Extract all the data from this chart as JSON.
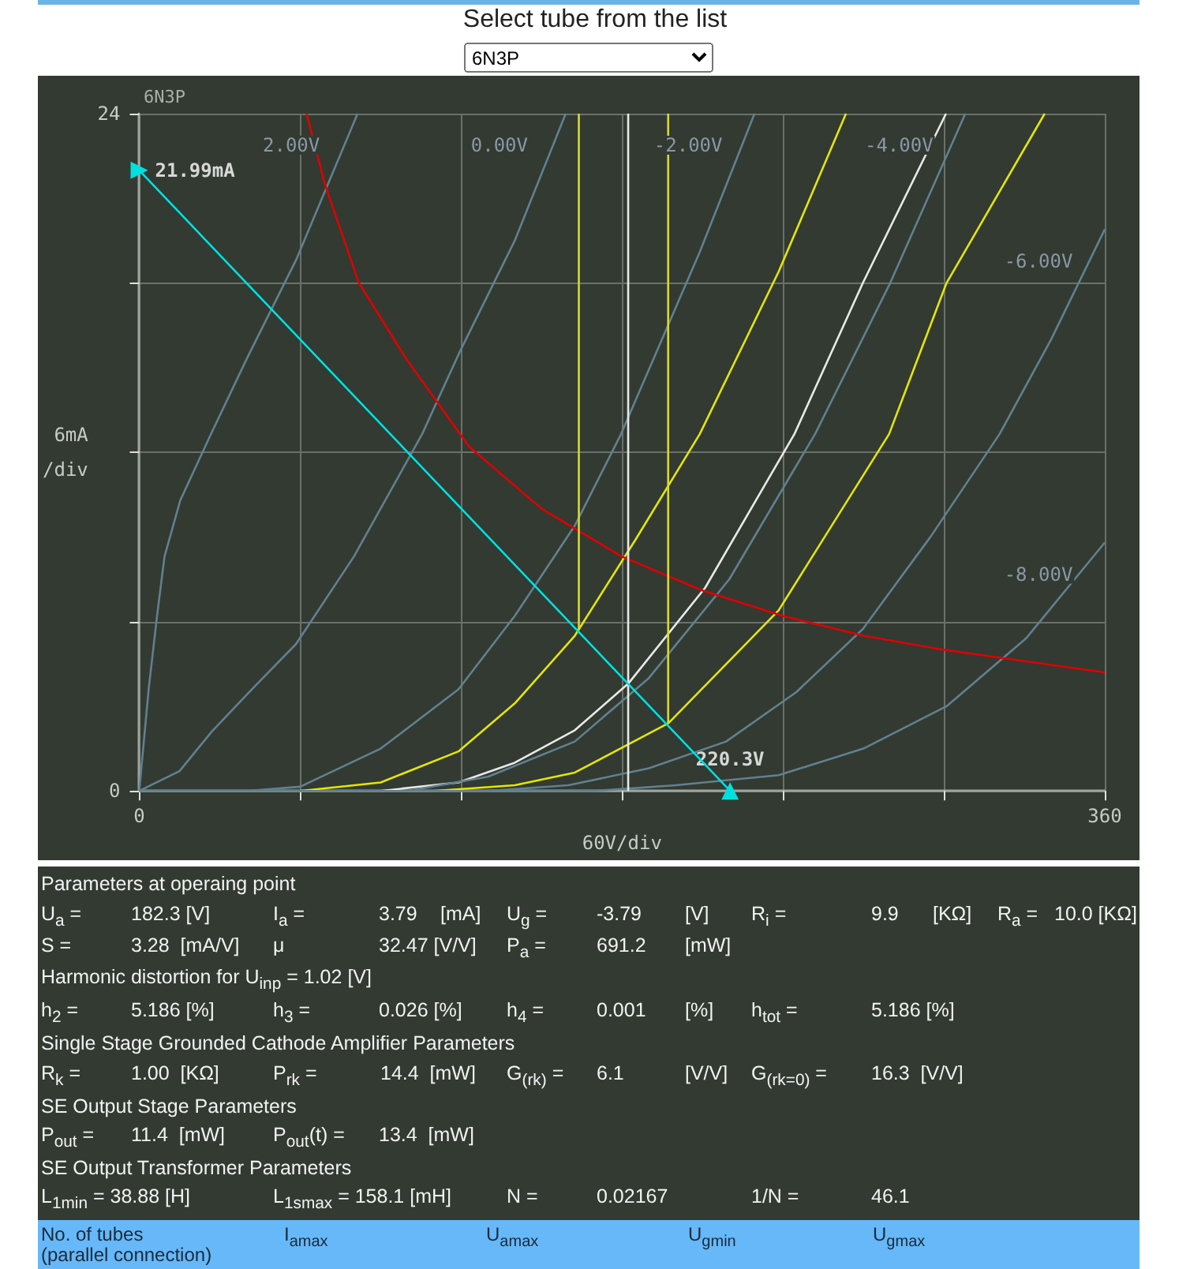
{
  "chart_data": [
    {
      "type": "other",
      "title": "Select tube from the list",
      "annotations": [
        "6N3P"
      ]
    },
    {
      "type": "line",
      "title": "6N3P",
      "xlim": [
        0,
        360
      ],
      "ylim": [
        0,
        24
      ],
      "xlabel": "60V/div",
      "ylabel": "6mA\n/div",
      "xticks": [
        0,
        {
          "value": 60,
          "label": null
        },
        {
          "value": 120,
          "label": null
        },
        {
          "value": 180,
          "label": null
        },
        {
          "value": 240,
          "label": null
        },
        {
          "value": 300,
          "label": null
        },
        360
      ],
      "yticks": [
        0,
        {
          "value": 6,
          "label": null
        },
        {
          "value": 12,
          "label": null
        },
        {
          "value": 18,
          "label": null
        },
        24
      ],
      "grid": true,
      "marker": "none",
      "line_style": "solid",
      "series": [
        {
          "name": "2.00V",
          "color": "#62808f",
          "x": [
            0,
            3.5,
            6.5,
            9.4,
            15.3,
            27,
            40,
            58.4,
            81.4
          ],
          "values": [
            0,
            3.6,
            6.1,
            8.3,
            10.3,
            12.7,
            15.3,
            18.8,
            24
          ]
        },
        {
          "name": "0.00V",
          "color": "#62808f",
          "x": [
            0,
            15,
            27,
            42,
            58.4,
            80,
            105.5,
            119.2,
            140,
            159
          ],
          "values": [
            0,
            0.7,
            2.1,
            3.6,
            5.2,
            8.3,
            12.65,
            15.5,
            19.5,
            24
          ]
        },
        {
          "name": "-2.00V",
          "color": "#62808f",
          "x": [
            0,
            40,
            60,
            90,
            119,
            140,
            162.4,
            179.4,
            209,
            229.4
          ],
          "values": [
            0,
            0,
            0.15,
            1.5,
            3.6,
            6.2,
            9.4,
            12.6,
            19.1,
            24
          ]
        },
        {
          "color": "#e6e600",
          "x": [
            0,
            60,
            90,
            119,
            140,
            162.4,
            185,
            209,
            238.4,
            263.5
          ],
          "values": [
            0,
            0,
            0.3,
            1.4,
            3.1,
            5.5,
            8.9,
            12.65,
            18.4,
            24
          ]
        },
        {
          "color": "#e8e8e8",
          "x": [
            0,
            90,
            119,
            140,
            162.4,
            182.3,
            211,
            244.3,
            269.8,
            300.8
          ],
          "values": [
            0,
            0,
            0.3,
            1,
            2.15,
            3.8,
            7.2,
            12.65,
            18,
            24
          ]
        },
        {
          "name": "-4.00V",
          "color": "#62808f",
          "x": [
            0,
            100,
            130,
            162.4,
            190,
            220,
            252,
            280,
            308
          ],
          "values": [
            0,
            0,
            0.5,
            1.75,
            4,
            7.5,
            12.65,
            18,
            24
          ]
        },
        {
          "color": "#e6e600",
          "x": [
            0,
            110,
            140,
            162.4,
            197.3,
            238.4,
            279.6,
            301,
            337.6
          ],
          "values": [
            0,
            0,
            0.2,
            0.65,
            2.4,
            6.4,
            12.65,
            18,
            24
          ]
        },
        {
          "name": "-6.00V",
          "color": "#62808f",
          "x": [
            0,
            130,
            160,
            190,
            218.8,
            245,
            269.8,
            295,
            320.8,
            340,
            360
          ],
          "values": [
            0,
            0,
            0.2,
            0.8,
            1.75,
            3.5,
            5.74,
            9,
            12.65,
            16,
            19.9
          ]
        },
        {
          "name": "-8.00V",
          "color": "#62808f",
          "x": [
            0,
            170,
            200,
            238.4,
            270,
            301,
            330.6,
            360
          ],
          "values": [
            0,
            0,
            0.2,
            0.56,
            1.5,
            3,
            5.4,
            8.8
          ]
        },
        {
          "color": "#e00000",
          "x": [
            62.4,
            69.2,
            81.9,
            99.6,
            123,
            150,
            180,
            210,
            240,
            270,
            300,
            330,
            360
          ],
          "values": [
            24,
            21.5,
            18,
            15.3,
            12.2,
            10,
            8.3,
            7.1,
            6.2,
            5.5,
            5,
            4.6,
            4.2
          ]
        },
        {
          "color": "#d8d830",
          "x": [
            163.9,
            163.9
          ],
          "values": [
            5.7,
            24
          ]
        },
        {
          "color": "#e8e8e8",
          "x": [
            182.3,
            182.3
          ],
          "values": [
            0,
            24
          ]
        },
        {
          "color": "#d8d830",
          "x": [
            197.2,
            197.2
          ],
          "values": [
            2.4,
            24
          ]
        },
        {
          "color": "#00e0e0",
          "marker": "triangle",
          "x": [
            0,
            220.3
          ],
          "values": [
            21.99,
            0
          ]
        }
      ],
      "annotations": [
        {
          "text": "21.99mA",
          "x": 0,
          "y": 21.99
        },
        {
          "text": "220.3V",
          "x": 220.3,
          "y": 0
        }
      ]
    },
    {
      "type": "other",
      "annotations": [
        "Parameters at operaing point",
        "U$_{a}$ =",
        "182.3 [V]",
        "I$_{a}$ =",
        "3.79",
        "[mA]",
        "U$_{g}$ =",
        "-3.79",
        "[V]",
        "R$_{i}$ =",
        "9.9",
        "[KΩ]",
        "R$_{a}$ =",
        "10.0 [KΩ]",
        "S =",
        "3.28  [mA/V]",
        "μ",
        "32.47 [V/V]",
        "P$_{a}$ =",
        "691.2",
        "[mW]",
        "Harmonic distortion for U$_{inp}$ = 1.02 [V]",
        "h$_{2}$ =",
        "5.186 [%]",
        "h$_{3}$ =",
        "0.026 [%]",
        "h$_{4}$ =",
        "0.001",
        "[%]",
        "h$_{tot}$ =",
        "5.186 [%]",
        "Single Stage Grounded Cathode Amplifier Parameters",
        "R$_{k}$ =",
        "1.00  [KΩ]",
        "P$_{rk}$ =",
        "14.4  [mW]",
        "G$_{(rk)}$ =",
        "6.1",
        "[V/V]",
        "G$_{(rk=0)}$ =",
        "16.3  [V/V]",
        "SE Output Stage Parameters",
        "P$_{out}$ =",
        "11.4  [mW]",
        "P$_{out}$(t) =",
        "13.4  [mW]",
        "SE Output Transformer Parameters",
        "L$_{1min}$ = 38.88 [H]",
        "L$_{1smax}$ = 158.1 [mH]",
        "N =",
        "0.02167",
        "1/N =",
        "46.1",
        "No. of tubes\n(parallel connection)",
        "I$_{amax}$",
        "U$_{amax}$",
        "U$_{gmin}$",
        "U$_{gmax}$"
      ]
    }
  ]
}
